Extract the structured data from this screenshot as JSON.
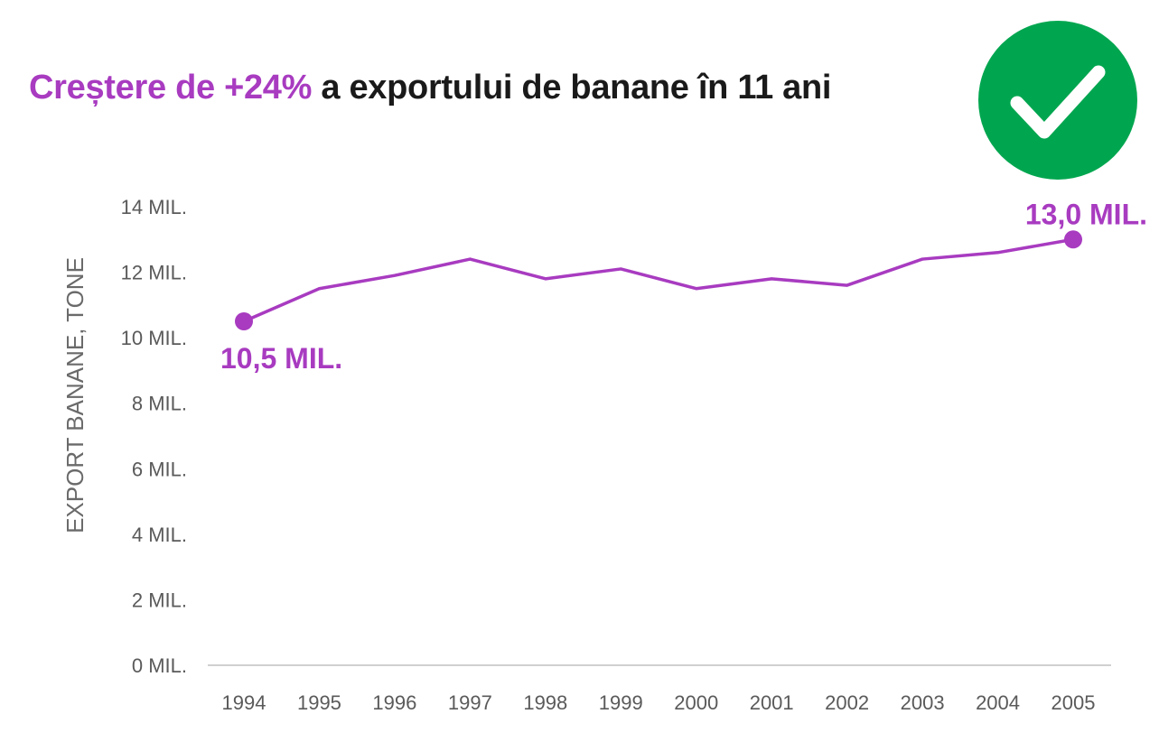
{
  "colors": {
    "accent": "#a83bc0",
    "badge": "#00a64f",
    "axis_line": "#d0d0d0",
    "tick_text": "#5a5a5a"
  },
  "title": {
    "highlight": "Creștere de +24%",
    "rest": " a exportului de banane în 11 ani"
  },
  "badge": {
    "icon": "check-icon"
  },
  "chart_data": {
    "type": "line",
    "title": "",
    "xlabel": "",
    "ylabel": "EXPORT BANANE, TONE",
    "x": [
      "1994",
      "1995",
      "1996",
      "1997",
      "1998",
      "1999",
      "2000",
      "2001",
      "2002",
      "2003",
      "2004",
      "2005"
    ],
    "series": [
      {
        "values": [
          10.5,
          11.5,
          11.9,
          12.4,
          11.8,
          12.1,
          11.5,
          11.8,
          11.6,
          12.4,
          12.6,
          13.0
        ]
      }
    ],
    "ylim": [
      0,
      14
    ],
    "yticks": [
      0,
      2,
      4,
      6,
      8,
      10,
      12,
      14
    ],
    "ytick_labels": [
      "0 MIL.",
      "2 MIL.",
      "4 MIL.",
      "6 MIL.",
      "8 MIL.",
      "10 MIL.",
      "12 MIL.",
      "14 MIL."
    ],
    "grid": false,
    "annotations": [
      {
        "index": 0,
        "text": "10,5 MIL."
      },
      {
        "index": 11,
        "text": "13,0 MIL."
      }
    ]
  }
}
